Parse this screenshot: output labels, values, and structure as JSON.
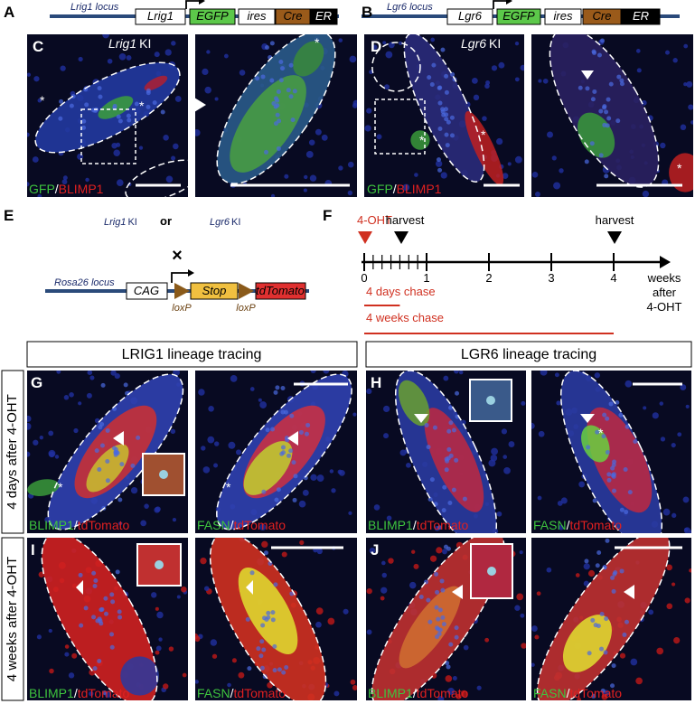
{
  "panel_labels": [
    "A",
    "B",
    "C",
    "D",
    "E",
    "F",
    "G",
    "H",
    "I",
    "J"
  ],
  "construct_a": {
    "locus": "Lrig1 locus",
    "gene": "Lrig1",
    "reporter": "EGFP",
    "ires": "ires",
    "cre": "Cre",
    "er": "ER"
  },
  "construct_b": {
    "locus": "Lgr6 locus",
    "gene": "Lgr6",
    "reporter": "EGFP",
    "ires": "ires",
    "cre": "Cre",
    "er": "ER"
  },
  "panel_c": {
    "gene": "Lrig1",
    "suffix": "KI",
    "stain_green": "GFP",
    "separator": "/",
    "stain_red": "BLIMP1"
  },
  "panel_d": {
    "gene": "Lgr6",
    "suffix": "KI",
    "stain_green": "GFP",
    "separator": "/",
    "stain_red": "BLIMP1"
  },
  "panel_e": {
    "driver_1": {
      "gene": "Lrig1",
      "suffix": "KI"
    },
    "conjunction": "or",
    "driver_2": {
      "gene": "Lgr6",
      "suffix": "KI"
    },
    "cross": "×",
    "locus": "Rosa26 locus",
    "promoter": "CAG",
    "stop": "Stop",
    "reporter": "tdTomato",
    "lox_sites": [
      "loxP",
      "loxP"
    ]
  },
  "panel_f": {
    "injection": "4-OHT",
    "harvest_labels": [
      "harvest",
      "harvest"
    ],
    "axis_ticks": [
      0,
      1,
      2,
      3,
      4
    ],
    "axis_label": [
      "weeks",
      "after",
      "4-OHT"
    ],
    "chase_labels": [
      "4 days chase",
      "4 weeks chase"
    ]
  },
  "column_headers": [
    "LRIG1 lineage tracing",
    "LGR6 lineage tracing"
  ],
  "row_labels": [
    "4 days after 4-OHT",
    "4 weeks after 4-OHT"
  ],
  "image_labels": [
    {
      "green": "BLIMP1",
      "separator": "/",
      "red": "tdTomato"
    },
    {
      "green": "FASN",
      "separator": "/",
      "red": "tdTomato"
    }
  ],
  "asterisk": "*"
}
